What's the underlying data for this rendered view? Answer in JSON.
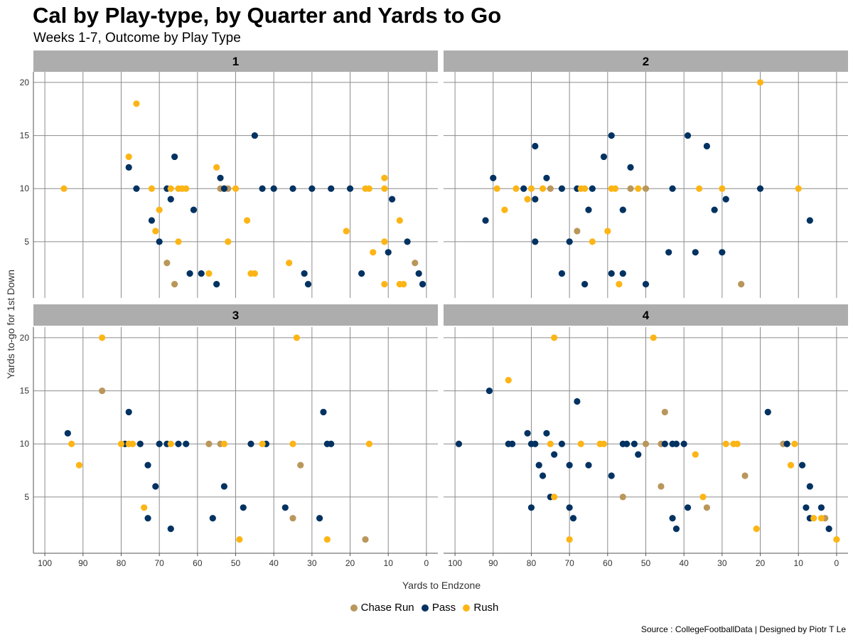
{
  "chart_data": {
    "type": "scatter",
    "title": "Cal by Play-type, by Quarter and Yards to Go",
    "subtitle": "Weeks 1-7, Outcome by Play Type",
    "xlabel": "Yards to Endzone",
    "ylabel": "Yards to-go for 1st Down",
    "caption": "Source : CollegeFootballData | Designed by Piotr T Le",
    "xlim": [
      103,
      -3
    ],
    "ylim": [
      -0.3,
      21
    ],
    "xticks": [
      100,
      90,
      80,
      70,
      60,
      50,
      40,
      30,
      20,
      10,
      0
    ],
    "yticks": [
      5,
      10,
      15,
      20
    ],
    "legend_position": "bottom",
    "colors": {
      "Chase Run": "#B9975B",
      "Pass": "#003262",
      "Rush": "#FDB515",
      "strip": "#ADADAD",
      "grid": "#8C8C8C"
    },
    "legend": [
      {
        "label": "Chase Run",
        "color": "#B9975B"
      },
      {
        "label": "Pass",
        "color": "#003262"
      },
      {
        "label": "Rush",
        "color": "#FDB515"
      }
    ],
    "panels": [
      {
        "label": "1",
        "points": {
          "Pass": [
            [
              78,
              12
            ],
            [
              76,
              10
            ],
            [
              72,
              7
            ],
            [
              70,
              5
            ],
            [
              68,
              10
            ],
            [
              67,
              9
            ],
            [
              66,
              13
            ],
            [
              61,
              8
            ],
            [
              62,
              2
            ],
            [
              59,
              2
            ],
            [
              55,
              1
            ],
            [
              54,
              11
            ],
            [
              53,
              10
            ],
            [
              45,
              15
            ],
            [
              43,
              10
            ],
            [
              40,
              10
            ],
            [
              35,
              10
            ],
            [
              30,
              10
            ],
            [
              25,
              10
            ],
            [
              20,
              10
            ],
            [
              17,
              2
            ],
            [
              32,
              2
            ],
            [
              31,
              1
            ],
            [
              10,
              4
            ],
            [
              9,
              9
            ],
            [
              5,
              5
            ],
            [
              2,
              2
            ],
            [
              1,
              1
            ]
          ],
          "Rush": [
            [
              95,
              10
            ],
            [
              76,
              18
            ],
            [
              78,
              13
            ],
            [
              72,
              10
            ],
            [
              71,
              6
            ],
            [
              70,
              8
            ],
            [
              67,
              10
            ],
            [
              65,
              10
            ],
            [
              64,
              10
            ],
            [
              63,
              10
            ],
            [
              65,
              5
            ],
            [
              57,
              2
            ],
            [
              55,
              12
            ],
            [
              52,
              5
            ],
            [
              50,
              10
            ],
            [
              47,
              7
            ],
            [
              46,
              2
            ],
            [
              45,
              2
            ],
            [
              36,
              3
            ],
            [
              21,
              6
            ],
            [
              16,
              10
            ],
            [
              15,
              10
            ],
            [
              14,
              4
            ],
            [
              11,
              11
            ],
            [
              11,
              10
            ],
            [
              11,
              5
            ],
            [
              11,
              1
            ],
            [
              7,
              7
            ],
            [
              7,
              1
            ],
            [
              6,
              1
            ]
          ],
          "Chase Run": [
            [
              68,
              3
            ],
            [
              66,
              1
            ],
            [
              53,
              10
            ],
            [
              52,
              10
            ],
            [
              54,
              10
            ],
            [
              3,
              3
            ]
          ]
        }
      },
      {
        "label": "2",
        "points": {
          "Pass": [
            [
              92,
              7
            ],
            [
              90,
              11
            ],
            [
              82,
              10
            ],
            [
              79,
              14
            ],
            [
              79,
              9
            ],
            [
              79,
              5
            ],
            [
              76,
              11
            ],
            [
              72,
              2
            ],
            [
              72,
              10
            ],
            [
              70,
              5
            ],
            [
              68,
              10
            ],
            [
              66,
              1
            ],
            [
              65,
              8
            ],
            [
              64,
              10
            ],
            [
              61,
              13
            ],
            [
              59,
              15
            ],
            [
              59,
              2
            ],
            [
              56,
              8
            ],
            [
              56,
              2
            ],
            [
              54,
              12
            ],
            [
              50,
              1
            ],
            [
              44,
              4
            ],
            [
              43,
              10
            ],
            [
              39,
              15
            ],
            [
              37,
              4
            ],
            [
              34,
              14
            ],
            [
              32,
              8
            ],
            [
              30,
              4
            ],
            [
              29,
              9
            ],
            [
              20,
              10
            ],
            [
              7,
              7
            ]
          ],
          "Rush": [
            [
              89,
              10
            ],
            [
              87,
              8
            ],
            [
              84,
              10
            ],
            [
              81,
              9
            ],
            [
              80,
              10
            ],
            [
              77,
              10
            ],
            [
              67,
              10
            ],
            [
              66,
              10
            ],
            [
              64,
              5
            ],
            [
              60,
              6
            ],
            [
              59,
              10
            ],
            [
              58,
              10
            ],
            [
              57,
              1
            ],
            [
              52,
              10
            ],
            [
              36,
              10
            ],
            [
              30,
              10
            ],
            [
              20,
              20
            ],
            [
              10,
              10
            ]
          ],
          "Chase Run": [
            [
              75,
              10
            ],
            [
              68,
              6
            ],
            [
              54,
              10
            ],
            [
              50,
              10
            ],
            [
              25,
              1
            ]
          ]
        }
      },
      {
        "label": "3",
        "points": {
          "Pass": [
            [
              94,
              11
            ],
            [
              79,
              10
            ],
            [
              78,
              13
            ],
            [
              75,
              10
            ],
            [
              73,
              8
            ],
            [
              73,
              3
            ],
            [
              71,
              6
            ],
            [
              70,
              10
            ],
            [
              68,
              10
            ],
            [
              67,
              2
            ],
            [
              65,
              10
            ],
            [
              63,
              10
            ],
            [
              56,
              3
            ],
            [
              53,
              6
            ],
            [
              46,
              10
            ],
            [
              48,
              4
            ],
            [
              42,
              10
            ],
            [
              37,
              4
            ],
            [
              28,
              3
            ],
            [
              27,
              13
            ],
            [
              26,
              10
            ],
            [
              25,
              10
            ]
          ],
          "Rush": [
            [
              93,
              10
            ],
            [
              91,
              8
            ],
            [
              85,
              20
            ],
            [
              80,
              10
            ],
            [
              78,
              10
            ],
            [
              77,
              10
            ],
            [
              74,
              4
            ],
            [
              67,
              10
            ],
            [
              53,
              10
            ],
            [
              49,
              1
            ],
            [
              43,
              10
            ],
            [
              35,
              10
            ],
            [
              34,
              20
            ],
            [
              26,
              1
            ],
            [
              15,
              10
            ]
          ],
          "Chase Run": [
            [
              85,
              15
            ],
            [
              57,
              10
            ],
            [
              54,
              10
            ],
            [
              35,
              3
            ],
            [
              33,
              8
            ],
            [
              16,
              1
            ]
          ]
        }
      },
      {
        "label": "4",
        "points": {
          "Pass": [
            [
              99,
              10
            ],
            [
              91,
              15
            ],
            [
              86,
              10
            ],
            [
              85,
              10
            ],
            [
              81,
              11
            ],
            [
              80,
              10
            ],
            [
              80,
              4
            ],
            [
              79,
              10
            ],
            [
              78,
              8
            ],
            [
              77,
              7
            ],
            [
              76,
              11
            ],
            [
              75,
              5
            ],
            [
              74,
              9
            ],
            [
              72,
              10
            ],
            [
              70,
              8
            ],
            [
              70,
              4
            ],
            [
              69,
              3
            ],
            [
              68,
              14
            ],
            [
              65,
              8
            ],
            [
              59,
              7
            ],
            [
              56,
              10
            ],
            [
              55,
              10
            ],
            [
              53,
              10
            ],
            [
              52,
              9
            ],
            [
              45,
              10
            ],
            [
              43,
              10
            ],
            [
              42,
              10
            ],
            [
              40,
              10
            ],
            [
              39,
              4
            ],
            [
              43,
              3
            ],
            [
              42,
              2
            ],
            [
              18,
              13
            ],
            [
              13,
              10
            ],
            [
              9,
              8
            ],
            [
              8,
              4
            ],
            [
              7,
              6
            ],
            [
              7,
              3
            ],
            [
              4,
              4
            ],
            [
              2,
              2
            ]
          ],
          "Rush": [
            [
              86,
              16
            ],
            [
              75,
              10
            ],
            [
              74,
              20
            ],
            [
              74,
              5
            ],
            [
              70,
              1
            ],
            [
              67,
              10
            ],
            [
              62,
              10
            ],
            [
              61,
              10
            ],
            [
              48,
              20
            ],
            [
              37,
              9
            ],
            [
              35,
              5
            ],
            [
              29,
              10
            ],
            [
              27,
              10
            ],
            [
              26,
              10
            ],
            [
              21,
              2
            ],
            [
              12,
              8
            ],
            [
              11,
              10
            ],
            [
              6,
              3
            ],
            [
              4,
              3
            ],
            [
              0,
              1
            ]
          ],
          "Chase Run": [
            [
              56,
              5
            ],
            [
              50,
              10
            ],
            [
              46,
              6
            ],
            [
              46,
              10
            ],
            [
              45,
              13
            ],
            [
              34,
              4
            ],
            [
              24,
              7
            ],
            [
              14,
              10
            ],
            [
              3,
              3
            ]
          ]
        }
      }
    ]
  }
}
